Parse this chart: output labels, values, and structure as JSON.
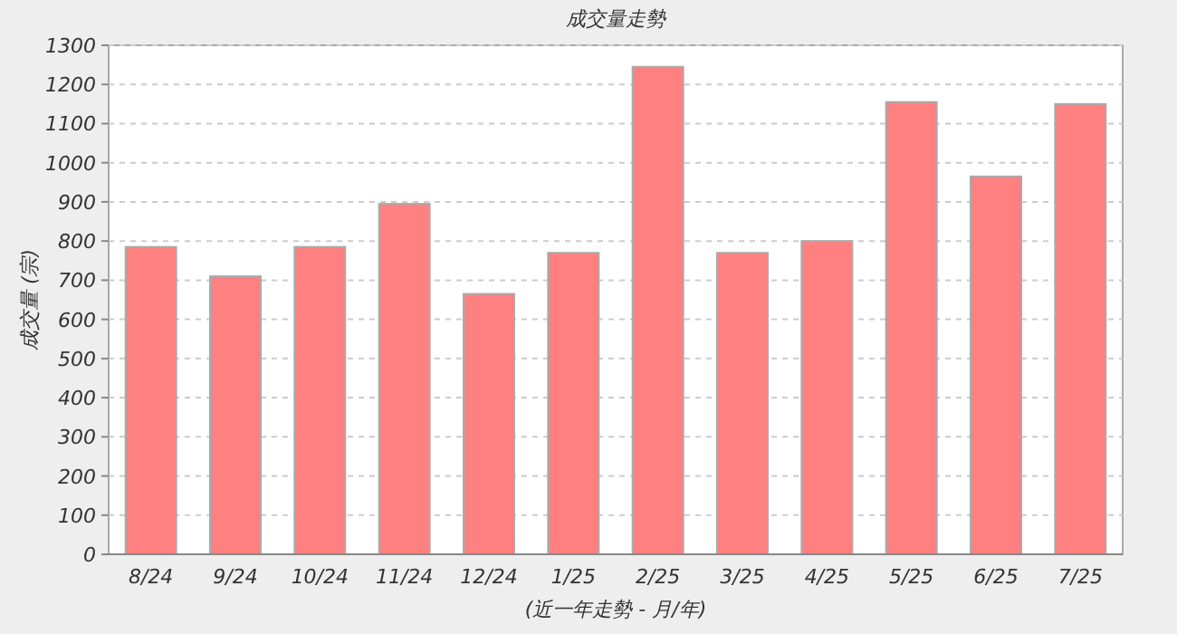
{
  "chart_data": {
    "type": "bar",
    "title": "成交量走勢",
    "xlabel": "(近一年走勢 - 月/年)",
    "ylabel": "成交量 (宗)",
    "categories": [
      "8/24",
      "9/24",
      "10/24",
      "11/24",
      "12/24",
      "1/25",
      "2/25",
      "3/25",
      "4/25",
      "5/25",
      "6/25",
      "7/25"
    ],
    "values": [
      785,
      710,
      785,
      895,
      665,
      770,
      1245,
      770,
      800,
      1155,
      965,
      1150
    ],
    "color": "#ff8080",
    "ylim": [
      0,
      1300
    ],
    "yticks": [
      0,
      100,
      200,
      300,
      400,
      500,
      600,
      700,
      800,
      900,
      1000,
      1100,
      1200,
      1300
    ],
    "grid": "y"
  }
}
